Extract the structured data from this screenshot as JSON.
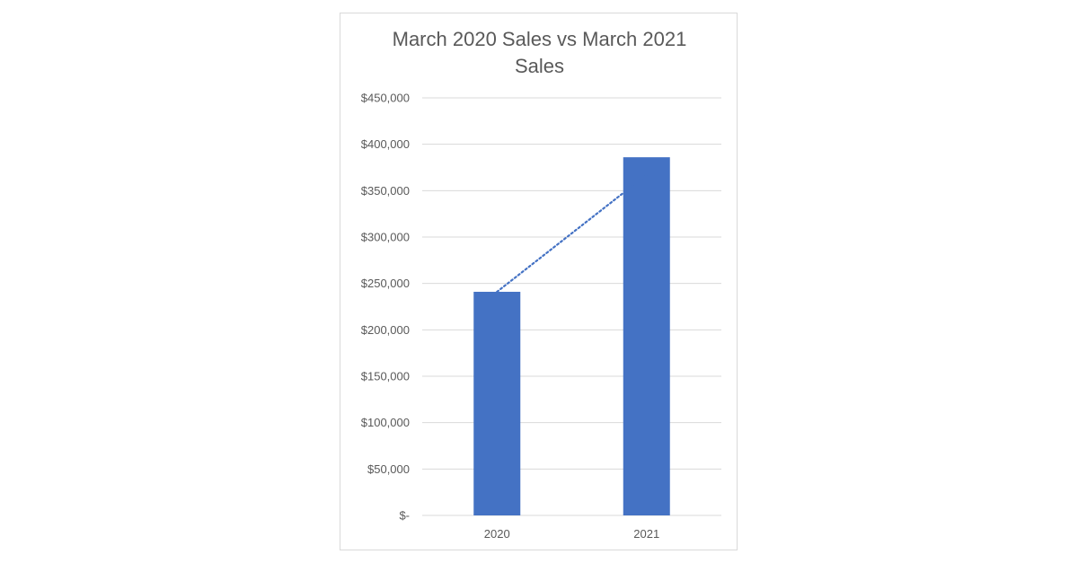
{
  "chart_data": {
    "type": "bar",
    "title_lines": [
      "March 2020 Sales vs March 2021",
      "Sales"
    ],
    "categories": [
      "2020",
      "2021"
    ],
    "values": [
      241000,
      386000
    ],
    "xlabel": "",
    "ylabel": "",
    "ylim": [
      0,
      450000
    ],
    "y_ticks": [
      0,
      50000,
      100000,
      150000,
      200000,
      250000,
      300000,
      350000,
      400000,
      450000
    ],
    "y_tick_labels": [
      "$-",
      "$50,000",
      "$100,000",
      "$150,000",
      "$200,000",
      "$250,000",
      "$300,000",
      "$350,000",
      "$400,000",
      "$450,000"
    ],
    "grid": true,
    "legend": "none",
    "trendline": {
      "style": "dotted",
      "type": "linear"
    },
    "colors": {
      "bar": "#4472c4",
      "trendline": "#4472c4",
      "grid": "#d9d9d9",
      "text": "#595959",
      "frame": "#d9d9d9"
    }
  }
}
